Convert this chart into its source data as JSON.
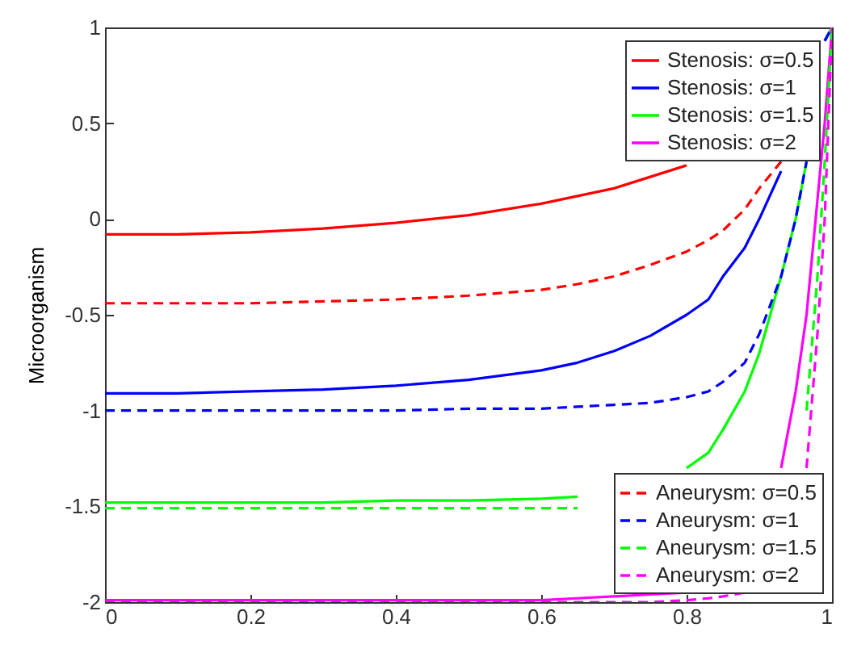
{
  "chart_data": {
    "type": "line",
    "ylabel": "Microorganism",
    "x": [
      0,
      0.1,
      0.2,
      0.3,
      0.4,
      0.5,
      0.6,
      0.65,
      0.7,
      0.75,
      0.8,
      0.83,
      0.85,
      0.88,
      0.9,
      0.93,
      0.95,
      0.965,
      0.98,
      0.99,
      1
    ],
    "xlim": [
      0,
      1
    ],
    "xticks": [
      0,
      0.2,
      0.4,
      0.6,
      0.8,
      1
    ],
    "ylim": [
      -2,
      1
    ],
    "yticks": [
      -2,
      -1.5,
      -1,
      -0.5,
      0,
      0.5,
      1
    ],
    "grid": false,
    "legend": "right",
    "marker": "none",
    "series": [
      {
        "name": "Stenosis: σ=0.5",
        "color": "#ff0000",
        "line_style": "solid",
        "values": [
          -0.08,
          -0.08,
          -0.07,
          -0.05,
          -0.02,
          0.02,
          0.08,
          0.12,
          0.16,
          0.22,
          0.28,
          null,
          null,
          null,
          null,
          null,
          null,
          null,
          null,
          null,
          null
        ]
      },
      {
        "name": "Stenosis: σ=1",
        "color": "#0000ff",
        "line_style": "solid",
        "values": [
          -0.91,
          -0.91,
          -0.9,
          -0.89,
          -0.87,
          -0.84,
          -0.79,
          -0.75,
          -0.69,
          -0.61,
          -0.5,
          -0.42,
          -0.3,
          -0.15,
          0.0,
          0.25,
          null,
          null,
          null,
          0.93,
          1
        ]
      },
      {
        "name": "Stenosis: σ=1.5",
        "color": "#00ff00",
        "line_style": "solid",
        "values": [
          -1.48,
          -1.48,
          -1.48,
          -1.48,
          -1.47,
          -1.47,
          -1.46,
          -1.45,
          null,
          null,
          -1.3,
          -1.22,
          -1.1,
          -0.9,
          -0.7,
          -0.3,
          0.0,
          0.3,
          null,
          0.93,
          1
        ]
      },
      {
        "name": "Stenosis: σ=2",
        "color": "#ff00ff",
        "line_style": "solid",
        "values": [
          -1.99,
          -1.99,
          -1.99,
          -1.99,
          -1.99,
          -1.99,
          -1.99,
          -1.98,
          -1.97,
          -1.96,
          -1.95,
          null,
          null,
          null,
          null,
          -1.3,
          -0.9,
          -0.5,
          0.1,
          0.5,
          1
        ]
      },
      {
        "name": "Aneurysm: σ=0.5",
        "color": "#ff0000",
        "line_style": "dashed",
        "values": [
          -0.44,
          -0.44,
          -0.44,
          -0.43,
          -0.42,
          -0.4,
          -0.37,
          -0.34,
          -0.3,
          -0.24,
          -0.17,
          -0.11,
          -0.06,
          0.05,
          0.16,
          0.3,
          null,
          null,
          null,
          null,
          null
        ]
      },
      {
        "name": "Aneurysm: σ=1",
        "color": "#0000ff",
        "line_style": "dashed",
        "values": [
          -1,
          -1,
          -1,
          -1,
          -1,
          -0.99,
          -0.99,
          -0.98,
          -0.97,
          -0.96,
          -0.93,
          -0.9,
          -0.85,
          -0.75,
          -0.6,
          -0.3,
          0.0,
          0.3,
          null,
          0.93,
          1
        ]
      },
      {
        "name": "Aneurysm: σ=1.5",
        "color": "#00ff00",
        "line_style": "dashed",
        "values": [
          -1.51,
          -1.51,
          -1.51,
          -1.51,
          -1.51,
          -1.51,
          -1.51,
          -1.51,
          null,
          null,
          null,
          null,
          null,
          null,
          null,
          null,
          null,
          -1.0,
          -0.3,
          0.3,
          1
        ]
      },
      {
        "name": "Aneurysm: σ=2",
        "color": "#ff00ff",
        "line_style": "dashed",
        "values": [
          -2,
          -2,
          -2,
          -2,
          -2,
          -2,
          -2,
          -2,
          -2,
          -2,
          -1.99,
          -1.98,
          -1.97,
          -1.95,
          null,
          null,
          null,
          -1.3,
          -0.6,
          0.0,
          1
        ]
      }
    ]
  }
}
